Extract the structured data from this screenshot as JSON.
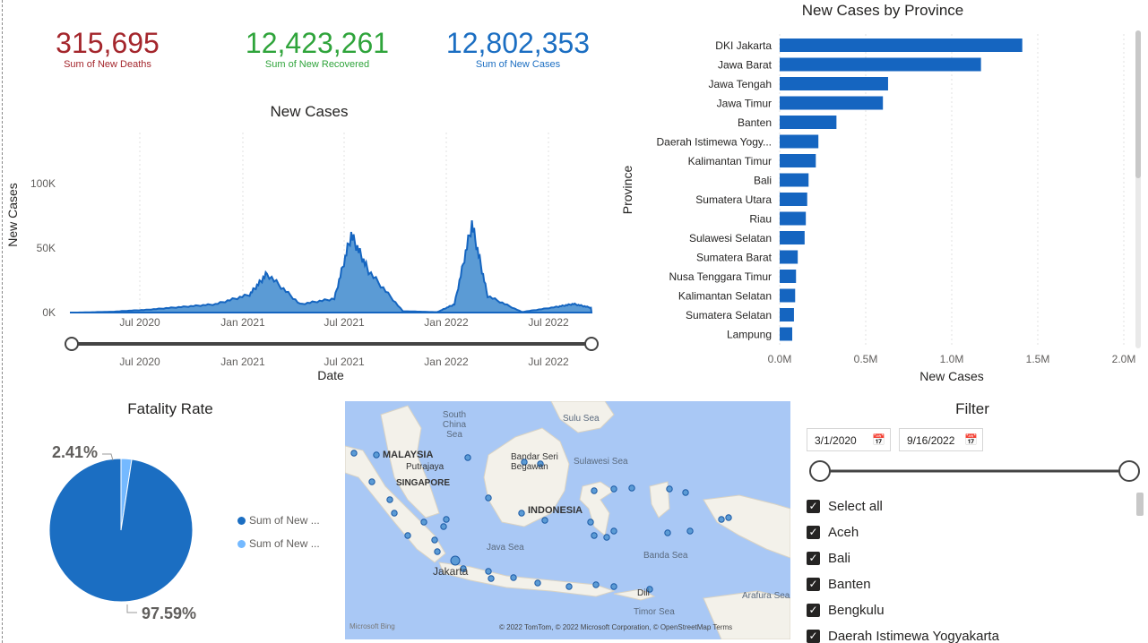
{
  "kpis": [
    {
      "value": "315,695",
      "label": "Sum of New Deaths",
      "color": "#a4262c"
    },
    {
      "value": "12,423,261",
      "label": "Sum of New Recovered",
      "color": "#2fa43b"
    },
    {
      "value": "12,802,353",
      "label": "Sum of New Cases",
      "color": "#1b6ec2"
    }
  ],
  "line_chart": {
    "title": "New Cases",
    "ylabel": "New Cases",
    "xlabel": "Date",
    "y_ticks": [
      "100K",
      "50K",
      "0K"
    ],
    "x_ticks": [
      "Jul 2020",
      "Jan 2021",
      "Jul 2021",
      "Jan 2022",
      "Jul 2022"
    ],
    "slider_ticks": [
      "Jul 2020",
      "Jan 2021",
      "Jul 2021",
      "Jan 2022",
      "Jul 2022"
    ]
  },
  "bar_chart": {
    "title": "New Cases by Province",
    "ylabel": "Province",
    "xlabel": "New Cases",
    "x_ticks": [
      "0.0M",
      "0.5M",
      "1.0M",
      "1.5M",
      "2.0M"
    ]
  },
  "pie_chart": {
    "title": "Fatality Rate",
    "label_small": "2.41%",
    "label_large": "97.59%",
    "legend": [
      {
        "label": "Sum of New ...",
        "color": "#1b6ec2"
      },
      {
        "label": "Sum of New ...",
        "color": "#74b9ff"
      }
    ]
  },
  "map": {
    "labels": [
      "South China Sea",
      "MALAYSIA",
      "Putrajaya",
      "SINGAPORE",
      "Bandar Seri Begawan",
      "Sulu Sea",
      "Sulawesi Sea",
      "INDONESIA",
      "Java Sea",
      "Banda Sea",
      "Jakarta",
      "Dili",
      "Arafura Sea",
      "Timor Sea"
    ],
    "attribution": "© 2022 TomTom, © 2022 Microsoft Corporation, © OpenStreetMap  Terms",
    "logo": "Microsoft Bing"
  },
  "filter": {
    "title": "Filter",
    "start_date": "3/1/2020",
    "end_date": "9/16/2022",
    "items": [
      "Select all",
      "Aceh",
      "Bali",
      "Banten",
      "Bengkulu",
      "Daerah Istimewa Yogyakarta"
    ]
  },
  "chart_data": [
    {
      "type": "area",
      "title": "New Cases",
      "xlabel": "Date",
      "ylabel": "New Cases",
      "ylim": [
        0,
        130000
      ],
      "x": [
        "2020-03",
        "2020-05",
        "2020-07",
        "2020-09",
        "2020-11",
        "2021-01",
        "2021-02",
        "2021-04",
        "2021-06",
        "2021-07",
        "2021-08",
        "2021-10",
        "2021-12",
        "2022-01",
        "2022-02",
        "2022-03",
        "2022-05",
        "2022-07",
        "2022-08",
        "2022-09"
      ],
      "series": [
        {
          "values": [
            0,
            600,
            2000,
            4000,
            6000,
            13000,
            28000,
            6000,
            10000,
            56000,
            30000,
            1000,
            300,
            6000,
            64000,
            12000,
            400,
            4000,
            6200,
            3500
          ]
        }
      ]
    },
    {
      "type": "bar",
      "title": "New Cases by Province",
      "xlabel": "New Cases",
      "ylabel": "Province",
      "xlim": [
        0,
        2000000
      ],
      "categories": [
        "DKI Jakarta",
        "Jawa Barat",
        "Jawa Tengah",
        "Jawa Timur",
        "Banten",
        "Daerah Istimewa Yogy...",
        "Kalimantan Timur",
        "Bali",
        "Sumatera Utara",
        "Riau",
        "Sulawesi Selatan",
        "Sumatera Barat",
        "Nusa Tenggara Timur",
        "Kalimantan Selatan",
        "Sumatera Selatan",
        "Lampung"
      ],
      "values": [
        1410000,
        1170000,
        630000,
        600000,
        330000,
        225000,
        210000,
        168000,
        160000,
        152000,
        145000,
        105000,
        95000,
        90000,
        83000,
        73000
      ]
    },
    {
      "type": "pie",
      "title": "Fatality Rate",
      "categories": [
        "Sum of New ...",
        "Sum of New ..."
      ],
      "values": [
        97.59,
        2.41
      ]
    }
  ]
}
